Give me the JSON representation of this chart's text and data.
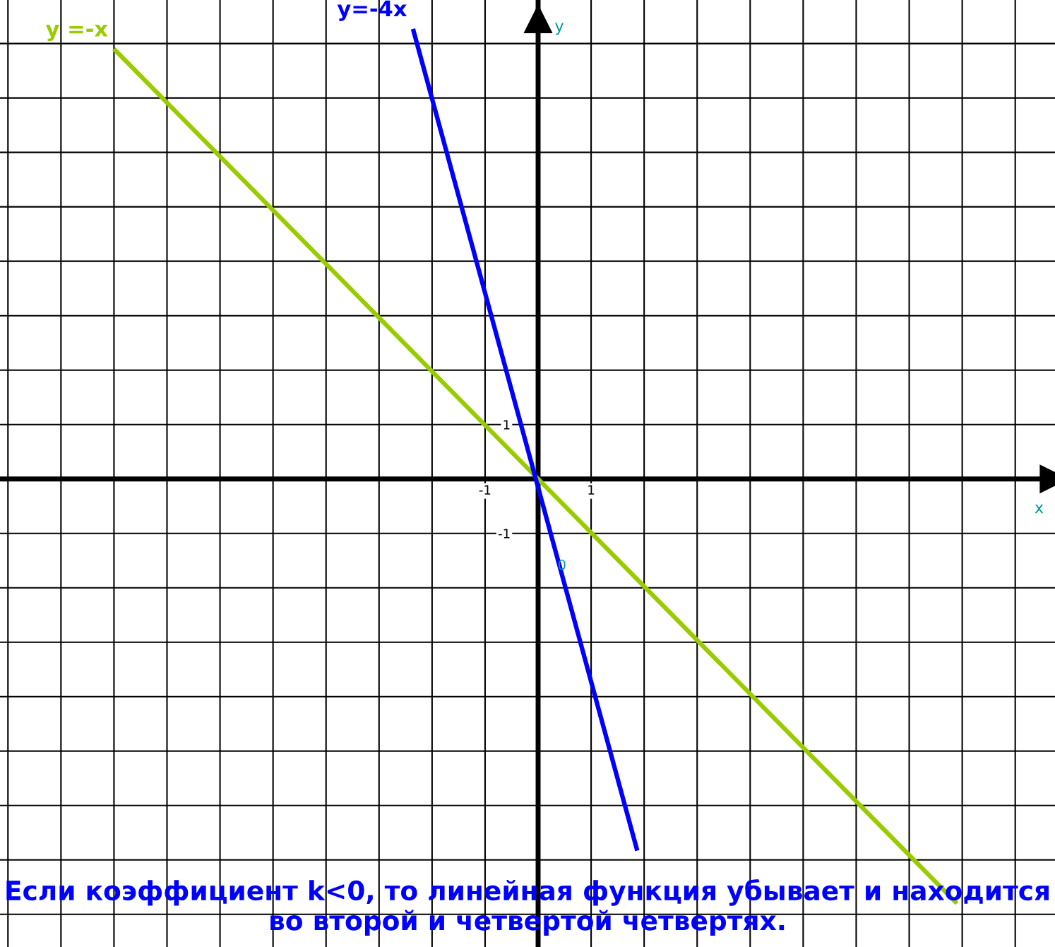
{
  "chart_data": {
    "type": "line",
    "xlabel": "x",
    "ylabel": "y",
    "xlim": [
      -10.15,
      9.75
    ],
    "ylim": [
      -8.6,
      8.8
    ],
    "xticks": [
      -1,
      1
    ],
    "yticks": [
      -1,
      1
    ],
    "grid": true,
    "series": [
      {
        "name": "y =-x",
        "color": "#99cc00",
        "x": [
          -8.0,
          7.9
        ],
        "values": [
          7.9,
          -7.8
        ]
      },
      {
        "name": "y=-4x",
        "color": "#0000ff",
        "x": [
          -2.36,
          1.87
        ],
        "values": [
          8.27,
          -6.83
        ]
      }
    ],
    "annotations": [
      {
        "text": "0",
        "x": 0.45,
        "y": -1.6
      },
      "Если коэффициент k<0, то линейная функция убывает и находится во второй и четвертой четвертях."
    ]
  }
}
